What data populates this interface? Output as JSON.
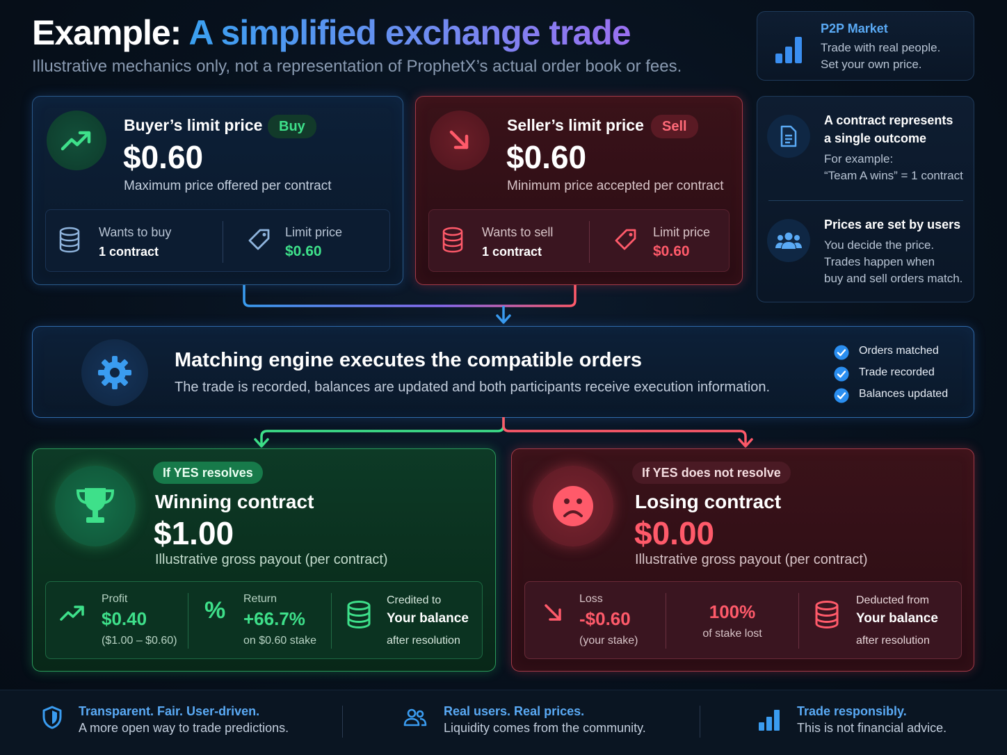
{
  "header": {
    "title_part1": "Example:",
    "title_part2": "A simplified exchange trade",
    "subtitle": "Illustrative mechanics only, not a representation of ProphetX’s actual order book or fees."
  },
  "p2p": {
    "title": "P2P Market",
    "line1": "Trade with real people.",
    "line2": "Set your own price.",
    "icon": "bar-chart-icon"
  },
  "buyer": {
    "heading": "Buyer’s limit price",
    "badge": "Buy",
    "price": "$0.60",
    "caption": "Maximum price offered per contract",
    "wants_label": "Wants to buy",
    "wants_value": "1 contract",
    "limit_label": "Limit price",
    "limit_value": "$0.60"
  },
  "seller": {
    "heading": "Seller’s limit price",
    "badge": "Sell",
    "price": "$0.60",
    "caption": "Minimum price accepted per contract",
    "wants_label": "Wants to sell",
    "wants_value": "1 contract",
    "limit_label": "Limit price",
    "limit_value": "$0.60"
  },
  "info": {
    "contract_title_1": "A contract represents",
    "contract_title_2": "a single outcome",
    "contract_body_1": "For example:",
    "contract_body_2": "“Team A wins” = 1 contract",
    "prices_title": "Prices are set by users",
    "prices_body_1": "You decide the price.",
    "prices_body_2": "Trades happen when",
    "prices_body_3": "buy and sell orders match."
  },
  "engine": {
    "title": "Matching engine executes the compatible orders",
    "body": "The trade is recorded, balances are updated and both participants receive execution information.",
    "checks": [
      "Orders matched",
      "Trade recorded",
      "Balances updated"
    ]
  },
  "win": {
    "badge": "If YES resolves",
    "title": "Winning contract",
    "amount": "$1.00",
    "caption": "Illustrative gross payout (per contract)",
    "profit_label": "Profit",
    "profit_value": "$0.40",
    "profit_note": "($1.00 – $0.60)",
    "return_label": "Return",
    "return_value": "+66.7%",
    "return_note": "on $0.60 stake",
    "credit_label": "Credited to",
    "credit_value": "Your balance",
    "credit_note": "after resolution"
  },
  "lose": {
    "badge": "If YES does not resolve",
    "title": "Losing contract",
    "amount": "$0.00",
    "caption": "Illustrative gross payout (per contract)",
    "loss_label": "Loss",
    "loss_value": "-$0.60",
    "loss_note": "(your stake)",
    "pct_value": "100%",
    "pct_note": "of stake lost",
    "deduct_label": "Deducted from",
    "deduct_value": "Your balance",
    "deduct_note": "after resolution"
  },
  "footer": {
    "f1_title": "Transparent. Fair. User-driven.",
    "f1_body": "A more open way to trade predictions.",
    "f2_title": "Real users. Real prices.",
    "f2_body": "Liquidity comes from the community.",
    "f3_title": "Trade responsibly.",
    "f3_body": "This is not financial advice."
  },
  "colors": {
    "green": "#3ee08a",
    "red": "#ff5a6a",
    "blue": "#3a9cf0",
    "accent_blue_text": "#5aaaf5"
  }
}
